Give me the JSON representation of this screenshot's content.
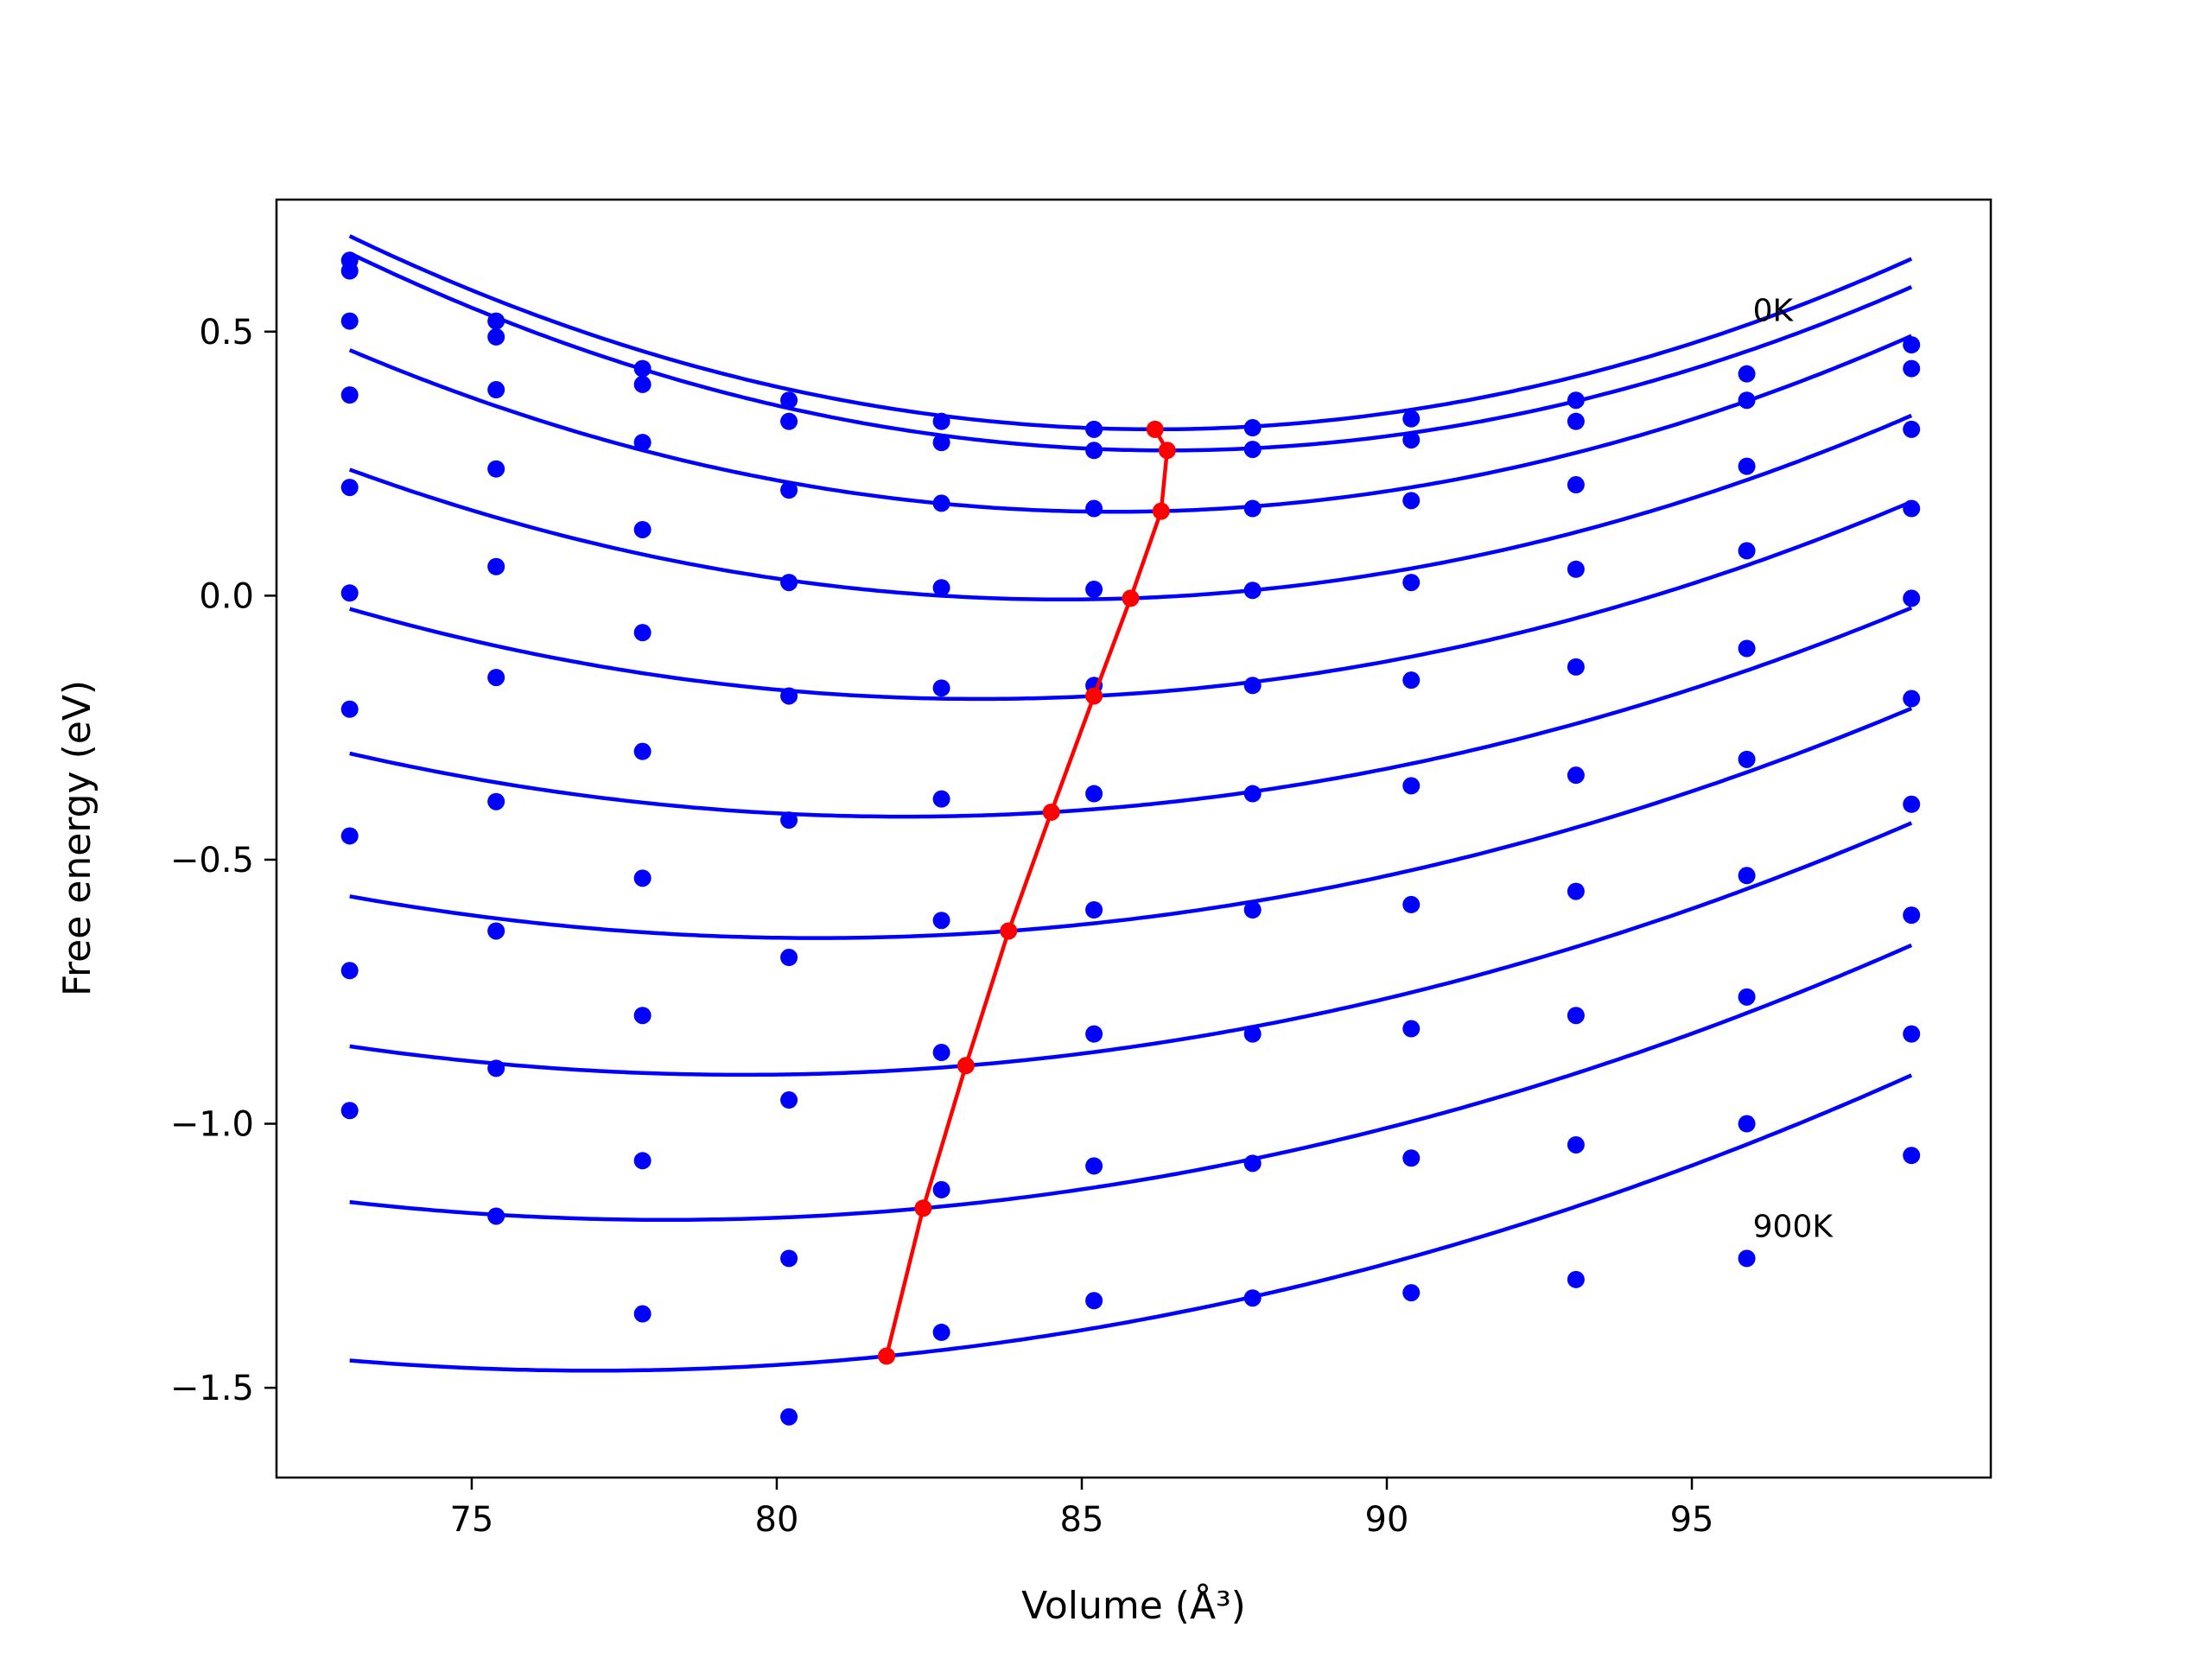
{
  "chart_data": {
    "type": "line",
    "title": "",
    "xlabel": "Volume (Å³)",
    "ylabel": "Free energy (eV)",
    "xlim": [
      71.8,
      99.9
    ],
    "ylim": [
      -1.67,
      0.75
    ],
    "xticks": [
      75,
      80,
      85,
      90,
      95
    ],
    "yticks": [
      0.5,
      0.0,
      -0.5,
      -1.0,
      -1.5
    ],
    "xtick_labels": [
      "75",
      "80",
      "85",
      "90",
      "95"
    ],
    "ytick_labels": [
      "0.5",
      "0.0",
      "−0.5",
      "−1.0",
      "−1.5"
    ],
    "annotations": [
      {
        "text": "0K",
        "x": 96.0,
        "y": 0.54
      },
      {
        "text": "900K",
        "x": 96.0,
        "y": -1.195
      }
    ],
    "point_x": [
      73.0,
      75.4,
      77.8,
      80.2,
      82.7,
      85.2,
      87.8,
      90.4,
      93.1,
      95.9,
      98.6
    ],
    "curve_color": "#0000ff",
    "minimum_line_color": "#ff0000",
    "series": [
      {
        "points": [
          0.635,
          0.52,
          0.43,
          0.37,
          0.33,
          0.315,
          0.318,
          0.335,
          0.37,
          0.42,
          0.475
        ],
        "curve": {
          "a": 0.0021,
          "v0": 86.2,
          "fmin": 0.315,
          "c": 0.0
        }
      },
      {
        "points": [
          0.615,
          0.49,
          0.4,
          0.33,
          0.29,
          0.275,
          0.277,
          0.295,
          0.33,
          0.37,
          0.43
        ],
        "curve": {
          "a": 0.00208,
          "v0": 86.4,
          "fmin": 0.275,
          "c": 0.0
        }
      },
      {
        "points": [
          0.52,
          0.39,
          0.29,
          0.2,
          0.175,
          0.165,
          0.165,
          0.18,
          0.21,
          0.245,
          0.315
        ],
        "curve": {
          "a": 0.00195,
          "v0": 86.3,
          "fmin": 0.16,
          "c": 0.003
        }
      },
      {
        "points": [
          0.38,
          0.24,
          0.125,
          0.025,
          0.015,
          0.012,
          0.01,
          0.025,
          0.05,
          0.085,
          0.165
        ],
        "curve": {
          "a": 0.0018,
          "v0": 85.8,
          "fmin": -0.005,
          "c": 0.004
        }
      },
      {
        "points": [
          0.205,
          0.055,
          -0.07,
          -0.19,
          -0.175,
          -0.17,
          -0.17,
          -0.16,
          -0.135,
          -0.1,
          -0.005
        ],
        "curve": {
          "a": 0.0016,
          "v0": 85.2,
          "fmin": -0.19,
          "c": 0.006
        }
      },
      {
        "points": [
          0.005,
          -0.155,
          -0.295,
          -0.425,
          -0.385,
          -0.375,
          -0.375,
          -0.36,
          -0.34,
          -0.31,
          -0.195
        ],
        "curve": {
          "a": 0.00145,
          "v0": 84.5,
          "fmin": -0.41,
          "c": 0.007
        }
      },
      {
        "points": [
          -0.215,
          -0.39,
          -0.535,
          -0.685,
          -0.615,
          -0.595,
          -0.595,
          -0.585,
          -0.56,
          -0.53,
          -0.395
        ],
        "curve": {
          "a": 0.00135,
          "v0": 83.8,
          "fmin": -0.635,
          "c": 0.0085
        }
      },
      {
        "points": [
          -0.455,
          -0.635,
          -0.795,
          -0.955,
          -0.865,
          -0.83,
          -0.83,
          -0.82,
          -0.795,
          -0.76,
          -0.605
        ],
        "curve": {
          "a": 0.0013,
          "v0": 83.1,
          "fmin": -0.89,
          "c": 0.0095
        }
      },
      {
        "points": [
          -0.71,
          -0.895,
          -1.07,
          -1.255,
          -1.125,
          -1.08,
          -1.075,
          -1.065,
          -1.04,
          -1.0,
          -0.83
        ],
        "curve": {
          "a": 0.00125,
          "v0": 82.4,
          "fmin": -1.16,
          "c": 0.0105
        }
      },
      {
        "points": [
          -0.975,
          -1.175,
          -1.36,
          -1.555,
          -1.395,
          -1.335,
          -1.33,
          -1.32,
          -1.295,
          -1.255,
          -1.06
        ],
        "curve": {
          "a": 0.0012,
          "v0": 81.8,
          "fmin": -1.44,
          "c": 0.0115
        }
      }
    ],
    "minimum_points": [
      {
        "x": 86.2,
        "y": 0.315
      },
      {
        "x": 86.4,
        "y": 0.275
      },
      {
        "x": 86.3,
        "y": 0.16
      },
      {
        "x": 85.8,
        "y": -0.005
      },
      {
        "x": 85.2,
        "y": -0.19
      },
      {
        "x": 84.5,
        "y": -0.41
      },
      {
        "x": 83.8,
        "y": -0.635
      },
      {
        "x": 83.1,
        "y": -0.89
      },
      {
        "x": 82.4,
        "y": -1.16
      },
      {
        "x": 81.8,
        "y": -1.44
      }
    ]
  }
}
